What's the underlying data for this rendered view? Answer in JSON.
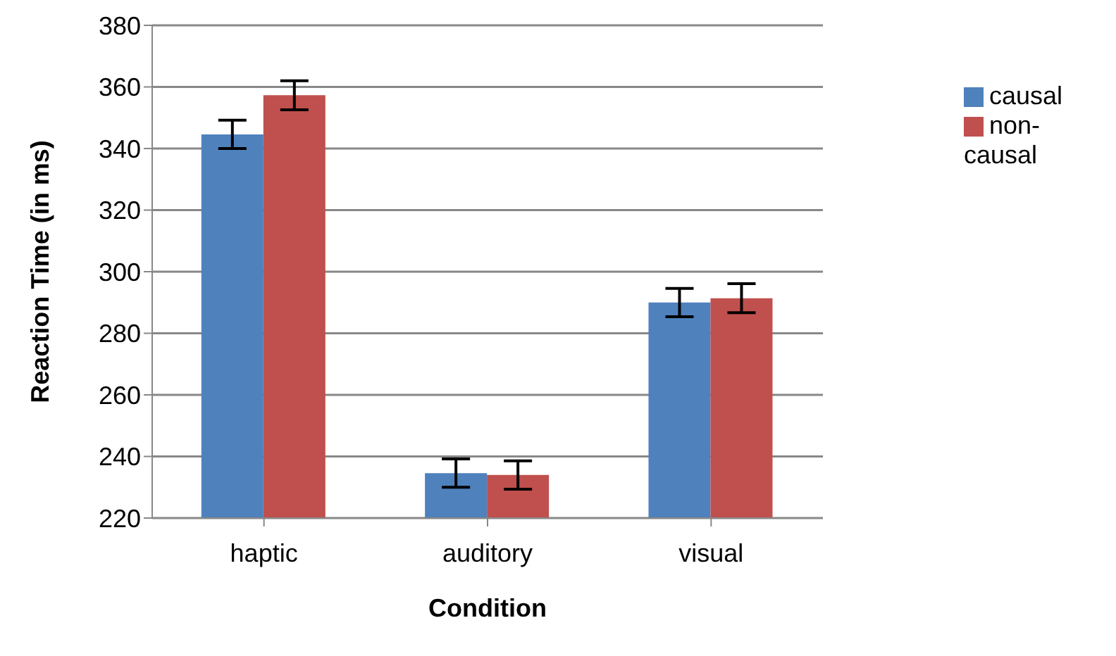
{
  "chart_data": {
    "type": "bar",
    "xlabel": "Condition",
    "ylabel": "Reaction Time (in ms)",
    "categories": [
      "haptic",
      "auditory",
      "visual"
    ],
    "series": [
      {
        "name": "causal",
        "color": "#4f81bd",
        "values": [
          344.6,
          234.6,
          290
        ],
        "errors": [
          4.6,
          4.6,
          4.6
        ]
      },
      {
        "name": "non-causal",
        "color": "#c0504d",
        "values": [
          357.3,
          234,
          291.4
        ],
        "errors": [
          4.7,
          4.6,
          4.7
        ]
      }
    ],
    "ylim": [
      220,
      380
    ],
    "yticks": [
      220,
      240,
      260,
      280,
      300,
      320,
      340,
      360,
      380
    ],
    "grid": "y",
    "legend": "right"
  }
}
